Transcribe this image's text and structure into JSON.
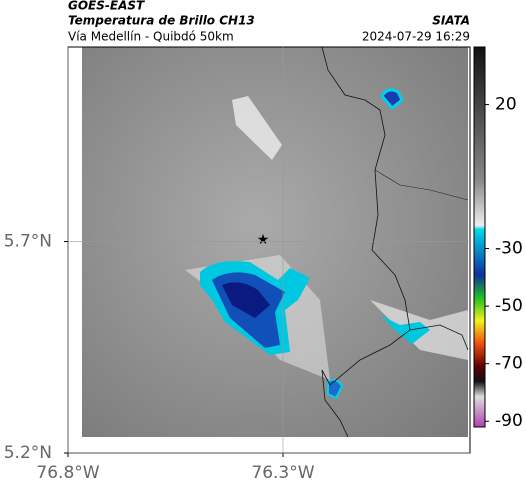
{
  "header": {
    "title": "GOES-EAST",
    "subtitle": "Temperatura de Brillo CH13",
    "location": "Vía Medellín - Quibdó 50km",
    "source": "SIATA",
    "timestamp": "2024-07-29 16:29"
  },
  "map": {
    "xlim": [
      -76.8,
      -75.865
    ],
    "ylim": [
      5.2,
      6.16
    ],
    "xticks": [
      {
        "value": -76.8,
        "label": "76.8°W"
      },
      {
        "value": -76.3,
        "label": "76.3°W"
      }
    ],
    "yticks": [
      {
        "value": 5.7,
        "label": "5.7°N"
      },
      {
        "value": 5.2,
        "label": "5.2°N"
      }
    ],
    "grid": true
  },
  "colorbar": {
    "range": [
      -92,
      40
    ],
    "ticks": [
      20,
      -30,
      -50,
      -70,
      -90
    ]
  }
}
